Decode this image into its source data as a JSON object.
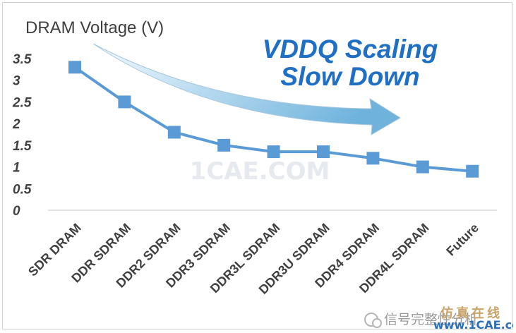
{
  "chart_data": {
    "type": "line",
    "title": "",
    "ylabel": "DRAM Voltage (V)",
    "xlabel": "",
    "categories": [
      "SDR DRAM",
      "DDR SDRAM",
      "DDR2 SDRAM",
      "DDR3 SDRAM",
      "DDR3L SDRAM",
      "DDR3U SDRAM",
      "DDR4 SDRAM",
      "DDR4L SDRAM",
      "Future"
    ],
    "yticks": [
      "0",
      "0.5",
      "1",
      "1.5",
      "2",
      "2.5",
      "3",
      "3.5"
    ],
    "ylim": [
      0,
      3.5
    ],
    "series": [
      {
        "values": [
          3.3,
          2.5,
          1.8,
          1.5,
          1.35,
          1.35,
          1.2,
          1.0,
          0.9
        ],
        "color": "#5b9bd5"
      }
    ],
    "annotation": {
      "line1": "VDDQ Scaling",
      "line2": "Slow Down"
    },
    "grid": false,
    "legend": "none"
  },
  "colors": {
    "series": "#5b9bd5",
    "callout_text": "#1f6fc4",
    "arrow_light": "#f4fbff",
    "arrow_dark": "#6fb3dd",
    "axis_line": "#d9d9d9"
  },
  "watermarks": {
    "center": "1CAE.COM",
    "corner_text": "信号完整性分析",
    "logo_top": "仿真在线",
    "logo_url": "www.1CAE.com"
  }
}
